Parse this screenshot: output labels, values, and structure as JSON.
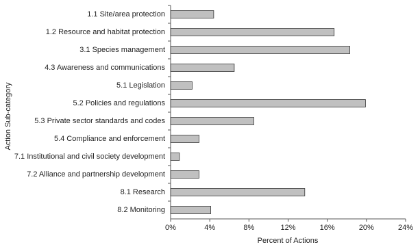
{
  "chart_data": {
    "type": "hbar",
    "x_label": "Percent of Actions",
    "y_label": "Action Sub-category",
    "categories": [
      "1.1 Site/area protection",
      "1.2 Resource and habitat protection",
      "3.1 Species management",
      "4.3 Awareness and communications",
      "5.1 Legislation",
      "5.2 Policies and regulations",
      "5.3 Private sector standards and codes",
      "5.4 Compliance and enforcement",
      "7.1 Institutional and civil society development",
      "7.2 Alliance and partnership development",
      "8.1 Research",
      "8.2 Monitoring"
    ],
    "values": [
      4.4,
      16.7,
      18.3,
      6.5,
      2.2,
      19.9,
      8.5,
      2.9,
      0.9,
      2.9,
      13.7,
      4.1
    ],
    "color": "#c0c0c0",
    "xlim": [
      0,
      24
    ],
    "xticks": [
      {
        "value": 0,
        "label": "0%"
      },
      {
        "value": 4,
        "label": "4%"
      },
      {
        "value": 8,
        "label": "8%"
      },
      {
        "value": 12,
        "label": "12%"
      },
      {
        "value": 16,
        "label": "16%"
      },
      {
        "value": 20,
        "label": "20%"
      },
      {
        "value": 24,
        "label": "24%"
      }
    ]
  }
}
